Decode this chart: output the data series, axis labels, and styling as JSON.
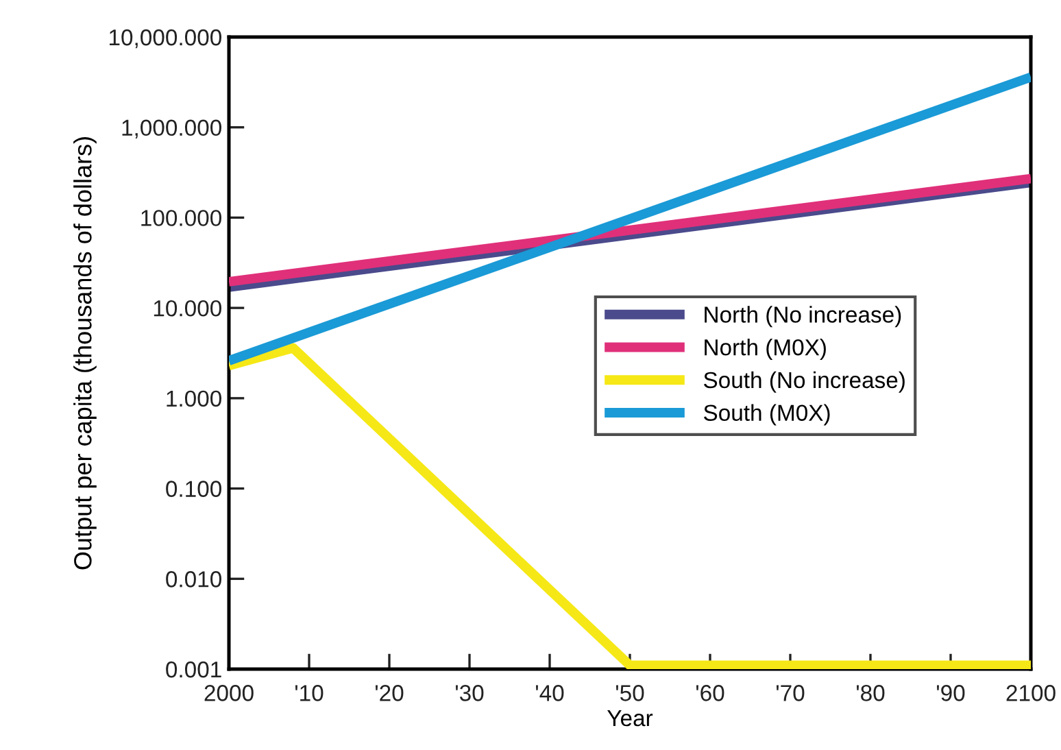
{
  "chart_data": {
    "type": "line",
    "xlabel": "Year",
    "ylabel": "Output per capita (thousands of dollars)",
    "log": "y",
    "xlim": [
      2000,
      2100
    ],
    "ylim": [
      0.001,
      10000
    ],
    "xticks": [
      2000,
      {
        "value": 2010,
        "label": "'10"
      },
      {
        "value": 2020,
        "label": "'20"
      },
      {
        "value": 2030,
        "label": "'30"
      },
      {
        "value": 2040,
        "label": "'40"
      },
      {
        "value": 2050,
        "label": "'50"
      },
      {
        "value": 2060,
        "label": "'60"
      },
      {
        "value": 2070,
        "label": "'70"
      },
      {
        "value": 2080,
        "label": "'80"
      },
      {
        "value": 2090,
        "label": "'90"
      },
      2100
    ],
    "yticks": [
      {
        "value": 0.001,
        "label": "0.001"
      },
      {
        "value": 0.01,
        "label": "0.010"
      },
      {
        "value": 0.1,
        "label": "0.100"
      },
      {
        "value": 1,
        "label": "1.000"
      },
      {
        "value": 10,
        "label": "10.000"
      },
      {
        "value": 100,
        "label": "100.000"
      },
      {
        "value": 1000,
        "label": "1,000.000"
      },
      {
        "value": 10000,
        "label": "10,000.000"
      }
    ],
    "grid": false,
    "legend": "right",
    "marker": "none",
    "line_style": "solid",
    "series": [
      {
        "name": "North (No increase)",
        "color": "#4a4a8c",
        "x": [
          2000,
          2100
        ],
        "values": [
          17,
          245
        ]
      },
      {
        "name": "North (M0X)",
        "color": "#e0307a",
        "x": [
          2000,
          2100
        ],
        "values": [
          19.5,
          270
        ]
      },
      {
        "name": "South (No increase)",
        "color": "#f5e816",
        "x": [
          2000,
          2008,
          2050,
          2100
        ],
        "values": [
          2.3,
          3.6,
          0.0011,
          0.0011
        ]
      },
      {
        "name": "South (M0X)",
        "color": "#1a9ad6",
        "x": [
          2000,
          2100
        ],
        "values": [
          2.6,
          3600
        ]
      }
    ]
  }
}
